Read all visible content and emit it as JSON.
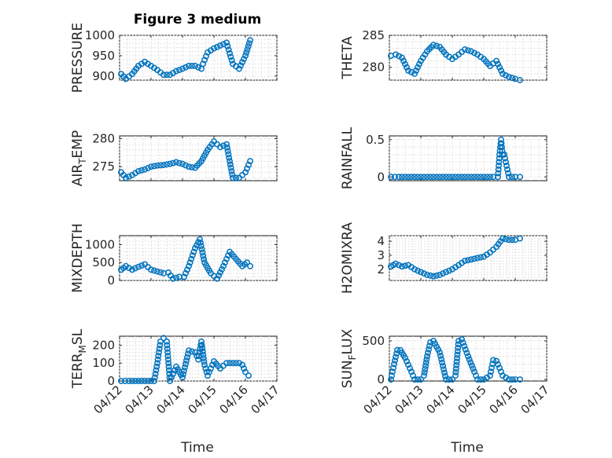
{
  "figure": {
    "title": "Figure 3 medium",
    "xlabel": "Time"
  },
  "colors": {
    "marker": "#0072BD",
    "axis": "#262626"
  },
  "chart_data": [
    {
      "id": "pressure",
      "type": "scatter",
      "ylabel": "PRESSURE",
      "xlim": [
        0,
        5
      ],
      "ylim": [
        890,
        1000
      ],
      "yticks": [
        900,
        950,
        1000
      ],
      "xticks": [
        0,
        1,
        2,
        3,
        4,
        5
      ],
      "xticklabels": [
        "04/12",
        "04/13",
        "04/14",
        "04/15",
        "04/16",
        "04/17"
      ],
      "x": [
        0.05,
        0.2,
        0.4,
        0.6,
        0.8,
        1.0,
        1.2,
        1.4,
        1.6,
        1.8,
        2.0,
        2.2,
        2.4,
        2.6,
        2.65,
        2.8,
        3.0,
        3.2,
        3.4,
        3.6,
        3.8,
        4.0,
        4.15
      ],
      "y": [
        905,
        893,
        905,
        925,
        935,
        925,
        915,
        903,
        903,
        912,
        918,
        925,
        925,
        918,
        930,
        958,
        968,
        975,
        982,
        930,
        918,
        950,
        988
      ]
    },
    {
      "id": "theta",
      "type": "scatter",
      "ylabel": "THETA",
      "xlim": [
        0,
        5
      ],
      "ylim": [
        278,
        285
      ],
      "yticks": [
        280,
        285
      ],
      "xticks": [
        0,
        1,
        2,
        3,
        4,
        5
      ],
      "xticklabels": [
        "04/12",
        "04/13",
        "04/14",
        "04/15",
        "04/16",
        "04/17"
      ],
      "x": [
        0.05,
        0.2,
        0.4,
        0.6,
        0.8,
        1.0,
        1.2,
        1.4,
        1.6,
        1.8,
        2.0,
        2.2,
        2.4,
        2.6,
        2.8,
        3.0,
        3.2,
        3.4,
        3.6,
        3.8,
        4.0,
        4.15
      ],
      "y": [
        281.8,
        282,
        281.5,
        279.5,
        279,
        281,
        282.5,
        283.5,
        283.2,
        282,
        281.3,
        282,
        282.8,
        282.5,
        282,
        281.3,
        280.2,
        281,
        279,
        278.5,
        278.2,
        278
      ]
    },
    {
      "id": "air_temp",
      "type": "scatter",
      "ylabel": "AIR",
      "ylabel_sub": "T",
      "ylabel_tail": "EMP",
      "xlim": [
        0,
        5
      ],
      "ylim": [
        272.5,
        280.5
      ],
      "yticks": [
        275,
        280
      ],
      "xticks": [
        0,
        1,
        2,
        3,
        4,
        5
      ],
      "xticklabels": [
        "04/12",
        "04/13",
        "04/14",
        "04/15",
        "04/16",
        "04/17"
      ],
      "x": [
        0.05,
        0.2,
        0.4,
        0.6,
        0.8,
        1.0,
        1.2,
        1.4,
        1.6,
        1.8,
        2.0,
        2.2,
        2.4,
        2.6,
        2.8,
        3.0,
        3.2,
        3.4,
        3.6,
        3.8,
        4.0,
        4.15
      ],
      "y": [
        274,
        273,
        273.5,
        274.2,
        274.5,
        275,
        275.2,
        275.3,
        275.5,
        275.8,
        275.5,
        275,
        274.8,
        276,
        278,
        279.5,
        278.5,
        279,
        273,
        273,
        274,
        276
      ]
    },
    {
      "id": "rainfall",
      "type": "scatter",
      "ylabel": "RAINFALL",
      "xlim": [
        0,
        5
      ],
      "ylim": [
        -0.05,
        0.55
      ],
      "yticks": [
        0,
        0.5
      ],
      "xticks": [
        0,
        1,
        2,
        3,
        4,
        5
      ],
      "xticklabels": [
        "04/12",
        "04/13",
        "04/14",
        "04/15",
        "04/16",
        "04/17"
      ],
      "x": [
        0.05,
        0.3,
        0.6,
        0.9,
        1.2,
        1.5,
        1.8,
        2.1,
        2.4,
        2.7,
        3.0,
        3.3,
        3.45,
        3.5,
        3.55,
        3.6,
        3.65,
        3.8,
        4.0,
        4.15
      ],
      "y": [
        0,
        0,
        0,
        0,
        0,
        0,
        0,
        0,
        0,
        0,
        0,
        0,
        0,
        0.3,
        0.5,
        0.3,
        0.3,
        0,
        0,
        0
      ]
    },
    {
      "id": "mixdepth",
      "type": "scatter",
      "ylabel": "MIXDEPTH",
      "xlim": [
        0,
        5
      ],
      "ylim": [
        0,
        1250
      ],
      "yticks": [
        0,
        500,
        1000
      ],
      "xticks": [
        0,
        1,
        2,
        3,
        4,
        5
      ],
      "xticklabels": [
        "04/12",
        "04/13",
        "04/14",
        "04/15",
        "04/16",
        "04/17"
      ],
      "x": [
        0.05,
        0.2,
        0.4,
        0.6,
        0.8,
        1.0,
        1.2,
        1.4,
        1.55,
        1.7,
        1.9,
        2.05,
        2.2,
        2.4,
        2.55,
        2.7,
        2.9,
        3.1,
        3.3,
        3.5,
        3.7,
        3.9,
        4.05,
        4.15
      ],
      "y": [
        300,
        400,
        300,
        380,
        450,
        300,
        250,
        200,
        220,
        50,
        100,
        100,
        400,
        900,
        1150,
        500,
        200,
        50,
        400,
        800,
        600,
        400,
        500,
        400
      ]
    },
    {
      "id": "h2omixra",
      "type": "scatter",
      "ylabel": "H2OMIXRA",
      "xlim": [
        0,
        5
      ],
      "ylim": [
        1.2,
        4.4
      ],
      "yticks": [
        2,
        3,
        4
      ],
      "xticks": [
        0,
        1,
        2,
        3,
        4,
        5
      ],
      "xticklabels": [
        "04/12",
        "04/13",
        "04/14",
        "04/15",
        "04/16",
        "04/17"
      ],
      "x": [
        0.05,
        0.2,
        0.4,
        0.6,
        0.8,
        1.0,
        1.2,
        1.4,
        1.6,
        1.8,
        2.0,
        2.2,
        2.4,
        2.6,
        2.8,
        3.0,
        3.2,
        3.4,
        3.6,
        3.8,
        4.0,
        4.15
      ],
      "y": [
        2.2,
        2.4,
        2.2,
        2.3,
        2.0,
        1.8,
        1.6,
        1.5,
        1.6,
        1.8,
        2.0,
        2.3,
        2.6,
        2.7,
        2.8,
        2.9,
        3.2,
        3.6,
        4.2,
        4.1,
        4.1,
        4.2
      ]
    },
    {
      "id": "terr_msl",
      "type": "scatter",
      "ylabel": "TERR",
      "ylabel_sub": "M",
      "ylabel_tail": "SL",
      "xlim": [
        0,
        5
      ],
      "ylim": [
        0,
        250
      ],
      "yticks": [
        0,
        100,
        200
      ],
      "xticks": [
        0,
        1,
        2,
        3,
        4,
        5
      ],
      "xticklabels": [
        "04/12",
        "04/13",
        "04/14",
        "04/15",
        "04/16",
        "04/17"
      ],
      "x": [
        0.05,
        0.3,
        0.6,
        0.9,
        1.1,
        1.2,
        1.3,
        1.4,
        1.5,
        1.6,
        1.8,
        2.0,
        2.2,
        2.4,
        2.5,
        2.6,
        2.7,
        2.8,
        3.0,
        3.2,
        3.4,
        3.6,
        3.8,
        3.9,
        4.0,
        4.1
      ],
      "y": [
        0,
        0,
        0,
        0,
        0,
        100,
        220,
        240,
        220,
        0,
        80,
        20,
        170,
        160,
        120,
        220,
        90,
        30,
        110,
        70,
        100,
        100,
        100,
        90,
        50,
        30
      ]
    },
    {
      "id": "sun_flux",
      "type": "scatter",
      "ylabel": "SUN",
      "ylabel_sub": "F",
      "ylabel_tail": "LUX",
      "xlim": [
        0,
        5
      ],
      "ylim": [
        -20,
        560
      ],
      "yticks": [
        0,
        500
      ],
      "xticks": [
        0,
        1,
        2,
        3,
        4,
        5
      ],
      "xticklabels": [
        "04/12",
        "04/13",
        "04/14",
        "04/15",
        "04/16",
        "04/17"
      ],
      "x": [
        0.05,
        0.15,
        0.25,
        0.35,
        0.5,
        0.7,
        0.8,
        0.9,
        1.0,
        1.1,
        1.2,
        1.3,
        1.4,
        1.6,
        1.8,
        1.9,
        2.0,
        2.1,
        2.2,
        2.3,
        2.5,
        2.7,
        2.8,
        3.0,
        3.2,
        3.3,
        3.4,
        3.5,
        3.6,
        3.8,
        4.0,
        4.15
      ],
      "y": [
        0,
        200,
        380,
        380,
        280,
        100,
        0,
        0,
        0,
        50,
        300,
        480,
        500,
        350,
        0,
        0,
        0,
        50,
        500,
        520,
        300,
        100,
        0,
        0,
        50,
        250,
        240,
        150,
        50,
        0,
        0,
        0
      ]
    }
  ]
}
